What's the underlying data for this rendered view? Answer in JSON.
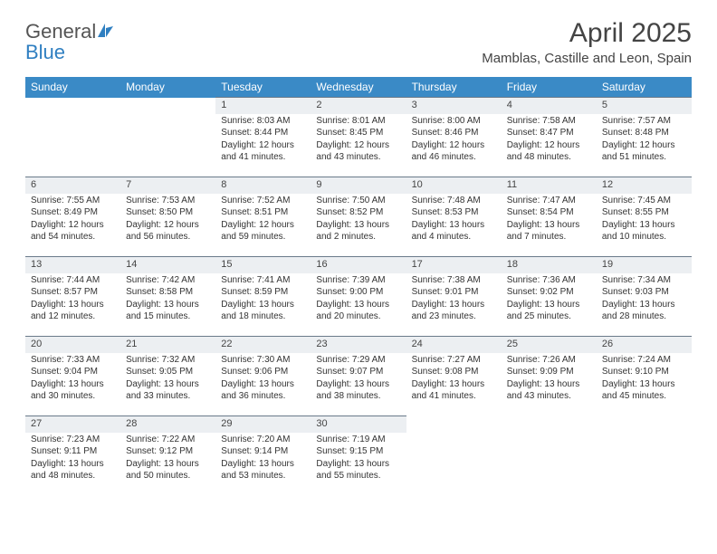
{
  "brand": {
    "name_gray": "General",
    "name_blue": "Blue",
    "blue_color": "#2f7fc1"
  },
  "title": "April 2025",
  "location": "Mamblas, Castille and Leon, Spain",
  "colors": {
    "header_row_bg": "#3a8ac6",
    "daynum_bg": "#eceff2",
    "daynum_border": "#6a7a8a",
    "text": "#333333"
  },
  "day_headers": [
    "Sunday",
    "Monday",
    "Tuesday",
    "Wednesday",
    "Thursday",
    "Friday",
    "Saturday"
  ],
  "weeks": [
    [
      null,
      null,
      {
        "n": "1",
        "sr": "8:03 AM",
        "ss": "8:44 PM",
        "dl": "12 hours and 41 minutes."
      },
      {
        "n": "2",
        "sr": "8:01 AM",
        "ss": "8:45 PM",
        "dl": "12 hours and 43 minutes."
      },
      {
        "n": "3",
        "sr": "8:00 AM",
        "ss": "8:46 PM",
        "dl": "12 hours and 46 minutes."
      },
      {
        "n": "4",
        "sr": "7:58 AM",
        "ss": "8:47 PM",
        "dl": "12 hours and 48 minutes."
      },
      {
        "n": "5",
        "sr": "7:57 AM",
        "ss": "8:48 PM",
        "dl": "12 hours and 51 minutes."
      }
    ],
    [
      {
        "n": "6",
        "sr": "7:55 AM",
        "ss": "8:49 PM",
        "dl": "12 hours and 54 minutes."
      },
      {
        "n": "7",
        "sr": "7:53 AM",
        "ss": "8:50 PM",
        "dl": "12 hours and 56 minutes."
      },
      {
        "n": "8",
        "sr": "7:52 AM",
        "ss": "8:51 PM",
        "dl": "12 hours and 59 minutes."
      },
      {
        "n": "9",
        "sr": "7:50 AM",
        "ss": "8:52 PM",
        "dl": "13 hours and 2 minutes."
      },
      {
        "n": "10",
        "sr": "7:48 AM",
        "ss": "8:53 PM",
        "dl": "13 hours and 4 minutes."
      },
      {
        "n": "11",
        "sr": "7:47 AM",
        "ss": "8:54 PM",
        "dl": "13 hours and 7 minutes."
      },
      {
        "n": "12",
        "sr": "7:45 AM",
        "ss": "8:55 PM",
        "dl": "13 hours and 10 minutes."
      }
    ],
    [
      {
        "n": "13",
        "sr": "7:44 AM",
        "ss": "8:57 PM",
        "dl": "13 hours and 12 minutes."
      },
      {
        "n": "14",
        "sr": "7:42 AM",
        "ss": "8:58 PM",
        "dl": "13 hours and 15 minutes."
      },
      {
        "n": "15",
        "sr": "7:41 AM",
        "ss": "8:59 PM",
        "dl": "13 hours and 18 minutes."
      },
      {
        "n": "16",
        "sr": "7:39 AM",
        "ss": "9:00 PM",
        "dl": "13 hours and 20 minutes."
      },
      {
        "n": "17",
        "sr": "7:38 AM",
        "ss": "9:01 PM",
        "dl": "13 hours and 23 minutes."
      },
      {
        "n": "18",
        "sr": "7:36 AM",
        "ss": "9:02 PM",
        "dl": "13 hours and 25 minutes."
      },
      {
        "n": "19",
        "sr": "7:34 AM",
        "ss": "9:03 PM",
        "dl": "13 hours and 28 minutes."
      }
    ],
    [
      {
        "n": "20",
        "sr": "7:33 AM",
        "ss": "9:04 PM",
        "dl": "13 hours and 30 minutes."
      },
      {
        "n": "21",
        "sr": "7:32 AM",
        "ss": "9:05 PM",
        "dl": "13 hours and 33 minutes."
      },
      {
        "n": "22",
        "sr": "7:30 AM",
        "ss": "9:06 PM",
        "dl": "13 hours and 36 minutes."
      },
      {
        "n": "23",
        "sr": "7:29 AM",
        "ss": "9:07 PM",
        "dl": "13 hours and 38 minutes."
      },
      {
        "n": "24",
        "sr": "7:27 AM",
        "ss": "9:08 PM",
        "dl": "13 hours and 41 minutes."
      },
      {
        "n": "25",
        "sr": "7:26 AM",
        "ss": "9:09 PM",
        "dl": "13 hours and 43 minutes."
      },
      {
        "n": "26",
        "sr": "7:24 AM",
        "ss": "9:10 PM",
        "dl": "13 hours and 45 minutes."
      }
    ],
    [
      {
        "n": "27",
        "sr": "7:23 AM",
        "ss": "9:11 PM",
        "dl": "13 hours and 48 minutes."
      },
      {
        "n": "28",
        "sr": "7:22 AM",
        "ss": "9:12 PM",
        "dl": "13 hours and 50 minutes."
      },
      {
        "n": "29",
        "sr": "7:20 AM",
        "ss": "9:14 PM",
        "dl": "13 hours and 53 minutes."
      },
      {
        "n": "30",
        "sr": "7:19 AM",
        "ss": "9:15 PM",
        "dl": "13 hours and 55 minutes."
      },
      null,
      null,
      null
    ]
  ],
  "labels": {
    "sunrise": "Sunrise: ",
    "sunset": "Sunset: ",
    "daylight": "Daylight: "
  }
}
